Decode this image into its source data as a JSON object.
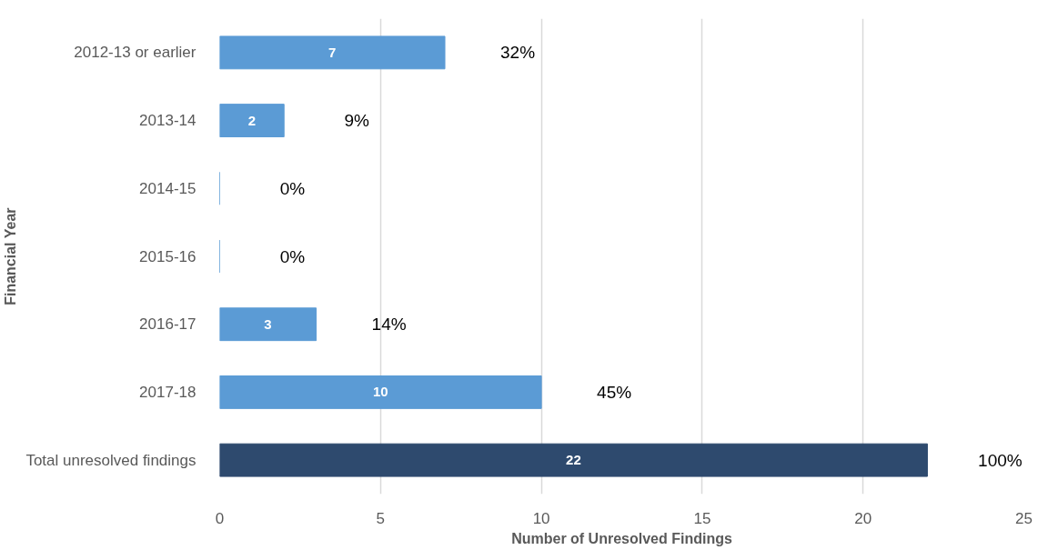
{
  "chart_data": {
    "type": "bar",
    "orientation": "horizontal",
    "categories": [
      "2012-13 or earlier",
      "2013-14",
      "2014-15",
      "2015-16",
      "2016-17",
      "2017-18",
      "Total unresolved findings"
    ],
    "values": [
      7,
      2,
      0,
      0,
      3,
      10,
      22
    ],
    "colors": [
      "#5b9bd5",
      "#5b9bd5",
      "#5b9bd5",
      "#5b9bd5",
      "#5b9bd5",
      "#5b9bd5",
      "#2e4a6e"
    ],
    "value_labels": [
      "7",
      "2",
      null,
      null,
      "3",
      "10",
      "22"
    ],
    "xlabel": "Number of Unresolved Findings",
    "ylabel": "Financial Year",
    "xlim": [
      0,
      25
    ],
    "xticks": [
      0,
      5,
      10,
      15,
      20,
      25
    ],
    "grid": "x",
    "annotations": [
      "32%",
      "9%",
      "0%",
      "0%",
      "14%",
      "45%",
      "100%"
    ]
  }
}
